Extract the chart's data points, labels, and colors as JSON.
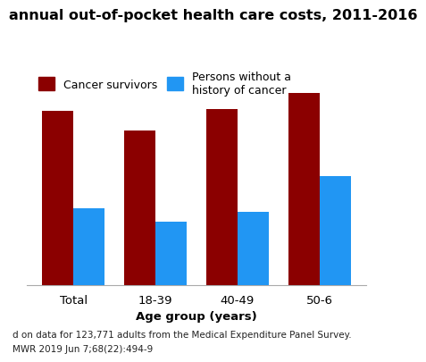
{
  "title": "annual out-of-pocket health care costs, 2011-2016",
  "categories": [
    "Total",
    "18-39",
    "40-49",
    "50-6"
  ],
  "cancer_survivors": [
    2800,
    2480,
    2820,
    3080
  ],
  "persons_without": [
    1230,
    1020,
    1180,
    1750
  ],
  "bar_color_cancer": "#8B0000",
  "bar_color_persons": "#2196F3",
  "xlabel": "Age group (years)",
  "ylim": [
    0,
    3500
  ],
  "legend_label_1": "Cancer survivors",
  "legend_label_2": "Persons without a\nhistory of cancer",
  "footnote_1": "d on data for 123,771 adults from the Medical Expenditure Panel Survey.",
  "footnote_2": "MWR 2019 Jun 7;68(22):494-9",
  "background_color": "#ffffff",
  "chart_bg_color": "#ffffff",
  "title_fontsize": 11.5,
  "axis_fontsize": 9.5,
  "legend_fontsize": 9,
  "footnote_fontsize": 7.5,
  "grid_color": "#cccccc"
}
